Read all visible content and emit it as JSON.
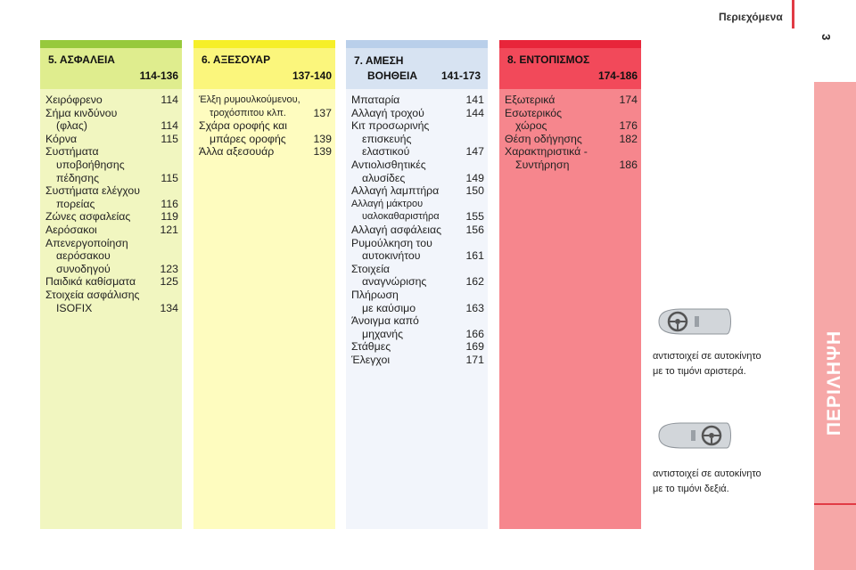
{
  "header": {
    "title": "Περιεχόμενα",
    "page_number": "3"
  },
  "side_tab": {
    "label": "ΠΕΡΙΛΗΨΗ"
  },
  "columns": [
    {
      "title": "5. ΑΣΦΑΛΕΙΑ",
      "pages": "114-136",
      "entries": [
        {
          "lines": [
            "Χειρόφρενο"
          ],
          "page": "114"
        },
        {
          "lines": [
            "Σήμα κινδύνου",
            "(φλας)"
          ],
          "page": "114"
        },
        {
          "lines": [
            "Κόρνα"
          ],
          "page": "115"
        },
        {
          "lines": [
            "Συστήματα",
            "υποβοήθησης",
            "πέδησης"
          ],
          "page": "115"
        },
        {
          "lines": [
            "Συστήματα ελέγχου",
            "πορείας"
          ],
          "page": "116"
        },
        {
          "lines": [
            "Ζώνες ασφαλείας"
          ],
          "page": "119"
        },
        {
          "lines": [
            "Αερόσακοι"
          ],
          "page": "121"
        },
        {
          "lines": [
            "Απενεργοποίηση",
            "αερόσακου",
            "συνοδηγού"
          ],
          "page": "123"
        },
        {
          "lines": [
            "Παιδικά καθίσματα"
          ],
          "page": "125"
        },
        {
          "lines": [
            "Στοιχεία ασφάλισης",
            "ISOFIX"
          ],
          "page": "134"
        }
      ]
    },
    {
      "title": "6. ΑΞΕΣΟΥΑΡ",
      "pages": "137-140",
      "entries": [
        {
          "lines": [
            "Έλξη ρυμουλκούμενου,",
            "τροχόσπιτου κλπ."
          ],
          "page": "137",
          "small": true
        },
        {
          "lines": [
            "Σχάρα οροφής και",
            "μπάρες οροφής"
          ],
          "page": "139"
        },
        {
          "lines": [
            "Άλλα αξεσουάρ"
          ],
          "page": "139"
        }
      ]
    },
    {
      "title_line1": "7. ΑΜΕΣΗ",
      "title_line2": "ΒΟΗΘΕΙΑ",
      "pages": "141-173",
      "entries": [
        {
          "lines": [
            "Μπαταρία"
          ],
          "page": "141"
        },
        {
          "lines": [
            "Αλλαγή τροχού"
          ],
          "page": "144"
        },
        {
          "lines": [
            "Κιτ προσωρινής",
            "επισκευής",
            "ελαστικού"
          ],
          "page": "147"
        },
        {
          "lines": [
            "Αντιολισθητικές",
            "αλυσίδες"
          ],
          "page": "149"
        },
        {
          "lines": [
            "Αλλαγή λαμπτήρα"
          ],
          "page": "150"
        },
        {
          "lines": [
            "Αλλαγή μάκτρου",
            "υαλοκαθαριστήρα"
          ],
          "page": "155",
          "small": true
        },
        {
          "lines": [
            "Αλλαγή ασφάλειας"
          ],
          "page": "156"
        },
        {
          "lines": [
            "Ρυμούλκηση του",
            "αυτοκινήτου"
          ],
          "page": "161"
        },
        {
          "lines": [
            "Στοιχεία",
            "αναγνώρισης"
          ],
          "page": "162"
        },
        {
          "lines": [
            "Πλήρωση",
            "με καύσιμο"
          ],
          "page": "163"
        },
        {
          "lines": [
            "Άνοιγμα καπό",
            "μηχανής"
          ],
          "page": "166"
        },
        {
          "lines": [
            "Στάθμες"
          ],
          "page": "169"
        },
        {
          "lines": [
            "Έλεγχοι"
          ],
          "page": "171"
        }
      ]
    },
    {
      "title": "8. ΕΝΤΟΠΙΣΜΟΣ",
      "pages": "174-186",
      "entries": [
        {
          "lines": [
            "Εξωτερικά"
          ],
          "page": "174"
        },
        {
          "lines": [
            "Εσωτερικός",
            "χώρος"
          ],
          "page": "176"
        },
        {
          "lines": [
            "Θέση οδήγησης"
          ],
          "page": "182"
        },
        {
          "lines": [
            "Χαρακτηριστικά -",
            "Συντήρηση"
          ],
          "page": "186"
        }
      ]
    }
  ],
  "notes": [
    {
      "icon": "left-hand-drive-icon",
      "line1": "αντιστοιχεί σε αυτοκίνητο",
      "line2": "με το τιμόνι αριστερά."
    },
    {
      "icon": "right-hand-drive-icon",
      "line1": "αντιστοιχεί σε αυτοκίνητο",
      "line2": "με το τιμόνι δεξιά."
    }
  ],
  "colors": {
    "green": "#97c93c",
    "yellow": "#f6ef28",
    "blue": "#b9cfea",
    "red": "#e8253a",
    "side_band": "#f6a7a7"
  }
}
